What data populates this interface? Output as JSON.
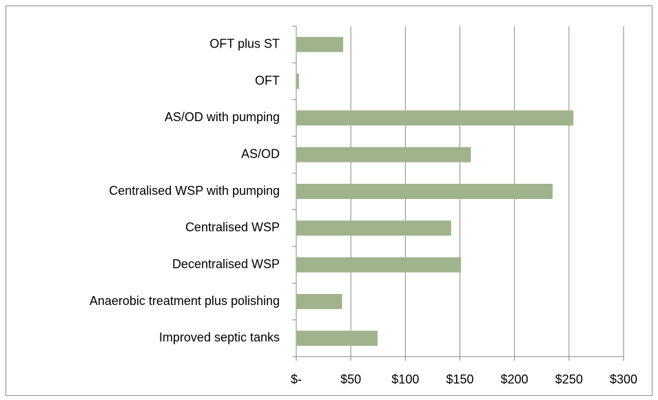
{
  "chart_data": {
    "type": "barh",
    "categories": [
      "OFT plus ST",
      "OFT",
      "AS/OD with pumping",
      "AS/OD",
      "Centralised WSP with pumping",
      "Centralised WSP",
      "Decentralised WSP",
      "Anaerobic treatment plus polishing",
      "Improved septic tanks"
    ],
    "values": [
      43,
      2.5,
      254,
      160,
      235,
      142,
      151,
      42,
      74.5
    ],
    "color": "#a0b38c",
    "xlim": [
      0,
      300
    ],
    "xticks": [
      {
        "value": 0,
        "label": "$-"
      },
      {
        "value": 50,
        "label": "$50"
      },
      {
        "value": 100,
        "label": "$100"
      },
      {
        "value": 150,
        "label": "$150"
      },
      {
        "value": 200,
        "label": "$200"
      },
      {
        "value": 250,
        "label": "$250"
      },
      {
        "value": 300,
        "label": "$300"
      }
    ],
    "grid": true
  }
}
